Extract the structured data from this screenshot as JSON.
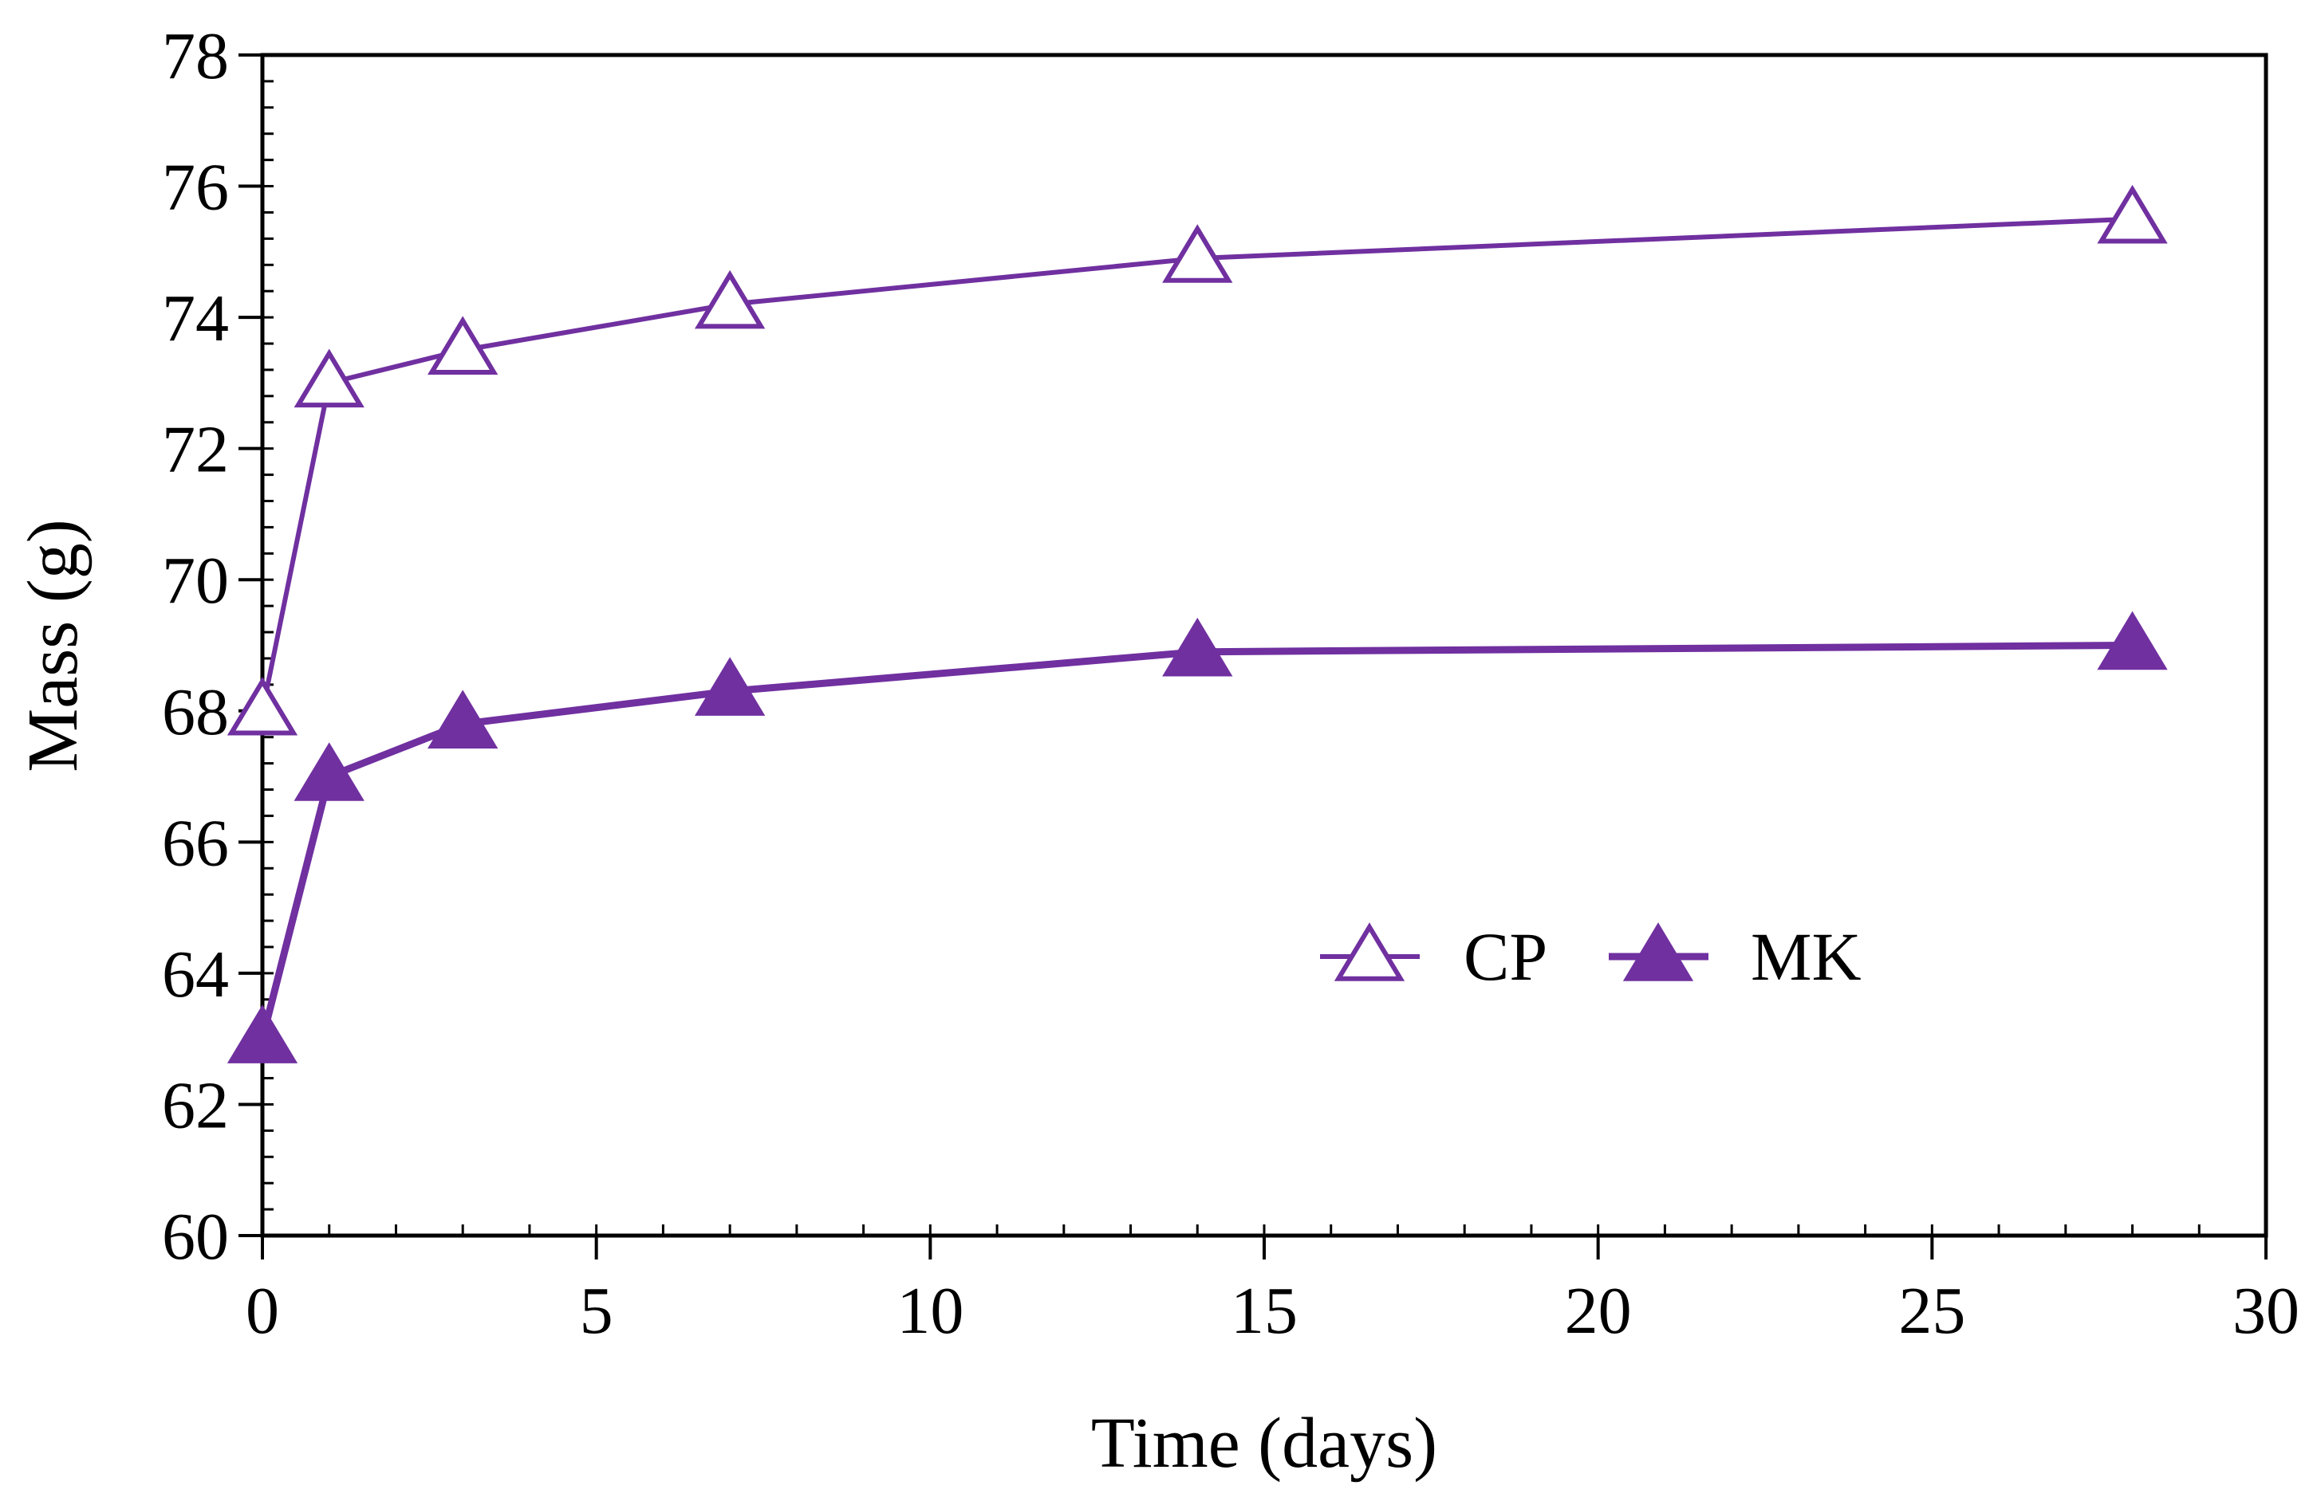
{
  "chart_data": {
    "type": "line",
    "title": "",
    "xlabel": "Time (days)",
    "ylabel": "Mass (g)",
    "xlim": [
      0,
      30
    ],
    "ylim": [
      60,
      78
    ],
    "x_ticks": [
      0,
      5,
      10,
      15,
      20,
      25,
      30
    ],
    "y_ticks": [
      60,
      62,
      64,
      66,
      68,
      70,
      72,
      74,
      76,
      78
    ],
    "grid": false,
    "legend_position": "lower-right",
    "series": [
      {
        "name": "CP",
        "marker": "open-triangle",
        "color": "#7030A0",
        "x": [
          0,
          1,
          3,
          7,
          14,
          28
        ],
        "values": [
          68.0,
          73.0,
          73.5,
          74.2,
          74.9,
          75.5
        ]
      },
      {
        "name": "MK",
        "marker": "filled-triangle",
        "color": "#7030A0",
        "x": [
          0,
          1,
          3,
          7,
          14,
          28
        ],
        "values": [
          63.0,
          67.0,
          67.8,
          68.3,
          68.9,
          69.0
        ]
      }
    ]
  }
}
